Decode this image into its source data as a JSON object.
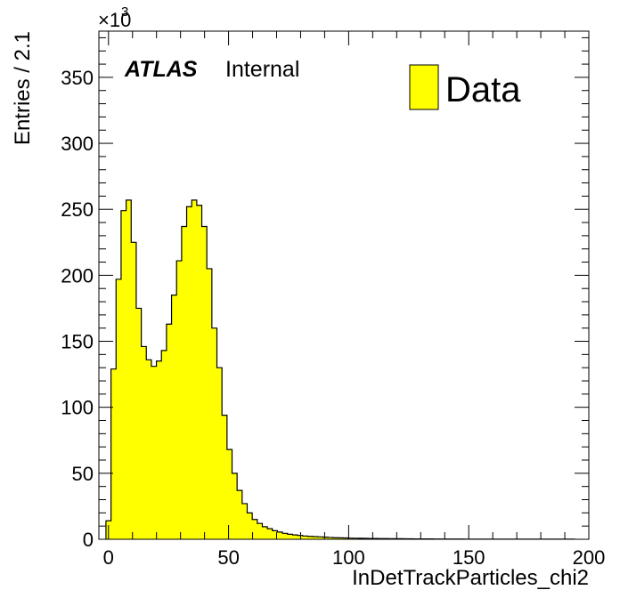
{
  "chart_data": {
    "type": "bar",
    "title": "",
    "xlabel": "InDetTrackParticles_chi2",
    "ylabel": "Entries / 2.1",
    "y_multiplier_base": "×10",
    "y_multiplier_power": "3",
    "xlim": [
      -4,
      200
    ],
    "ylim": [
      0,
      385
    ],
    "x_ticks": [
      0,
      50,
      100,
      150,
      200
    ],
    "y_ticks": [
      0,
      50,
      100,
      150,
      200,
      250,
      300,
      350
    ],
    "bin_width": 2.1,
    "bin_start": -1.05,
    "values": [
      14,
      129,
      197,
      249,
      257,
      225,
      175,
      146,
      136,
      131,
      135,
      143,
      163,
      185,
      211,
      237,
      252,
      257,
      253,
      237,
      205,
      160,
      130,
      94,
      68,
      50,
      37,
      27,
      20,
      15,
      12,
      9.5,
      8,
      6.5,
      5.5,
      4.5,
      3.8,
      3.3,
      2.9,
      2.5,
      2.2,
      2.0,
      1.8,
      1.6,
      1.4,
      1.2,
      1.1,
      1.0,
      0.9,
      0.8,
      0.75,
      0.7,
      0.65,
      0.6,
      0.55,
      0.5,
      0.45,
      0.4,
      0.4,
      0.35,
      0.35,
      0.3,
      0.3,
      0.25,
      0.25,
      0.2,
      0.2,
      0.2,
      0.15,
      0.15,
      0.15,
      0.1,
      0.1,
      0.1,
      0.1,
      0.1,
      0.1,
      0.1,
      0.1,
      0.1,
      0.1,
      0.1,
      0.1,
      0.1,
      0.1,
      0.1,
      0.1,
      0.1,
      0.1,
      0.1,
      0.1,
      0.1,
      0.1
    ],
    "fill_color": "#ffff00",
    "line_color": "#000000",
    "legend": [
      "Data"
    ],
    "legend_position": "top-right",
    "grid": false
  },
  "labels": {
    "atlas": "ATLAS",
    "status": "Internal",
    "legend_entry": "Data"
  }
}
